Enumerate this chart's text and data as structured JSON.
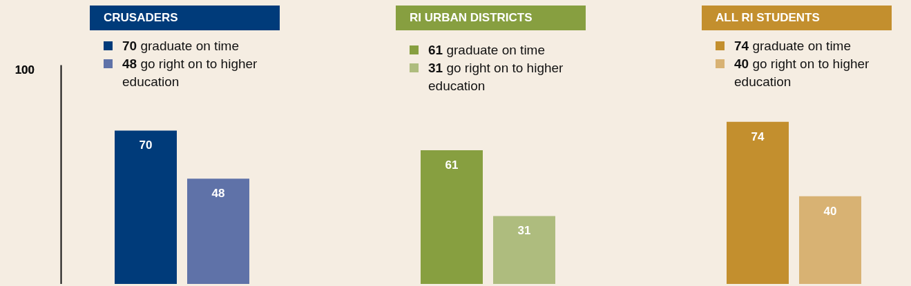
{
  "chart_data": [
    {
      "type": "bar",
      "title": "CRUSADERS",
      "categories": [
        null
      ],
      "ylim": [
        0,
        100
      ],
      "annotations": [
        "100"
      ],
      "tick_labels": "y",
      "data_labels": true,
      "legend": "top",
      "series": [
        {
          "name": "70 graduate on time",
          "color": "#003b7a",
          "values": [
            70
          ]
        },
        {
          "name": "48 go right on to higher education",
          "color": "#5f72a8",
          "values": [
            48
          ]
        }
      ]
    },
    {
      "type": "bar",
      "title": "RI URBAN DISTRICTS",
      "categories": [
        null
      ],
      "tick_labels": false,
      "data_labels": true,
      "legend": "top",
      "series": [
        {
          "name": "61 graduate on time",
          "color": "#879f40",
          "values": [
            61
          ]
        },
        {
          "name": "31 go right on to higher education",
          "color": "#aebc7e",
          "values": [
            31
          ]
        }
      ]
    },
    {
      "type": "bar",
      "title": "ALL RI STUDENTS",
      "categories": [
        null
      ],
      "tick_labels": false,
      "data_labels": true,
      "legend": "top",
      "series": [
        {
          "name": "74 graduate on time",
          "color": "#c38f2e",
          "values": [
            74
          ]
        },
        {
          "name": "40 go right on to higher education",
          "color": "#d8b273",
          "values": [
            40
          ]
        }
      ]
    }
  ]
}
